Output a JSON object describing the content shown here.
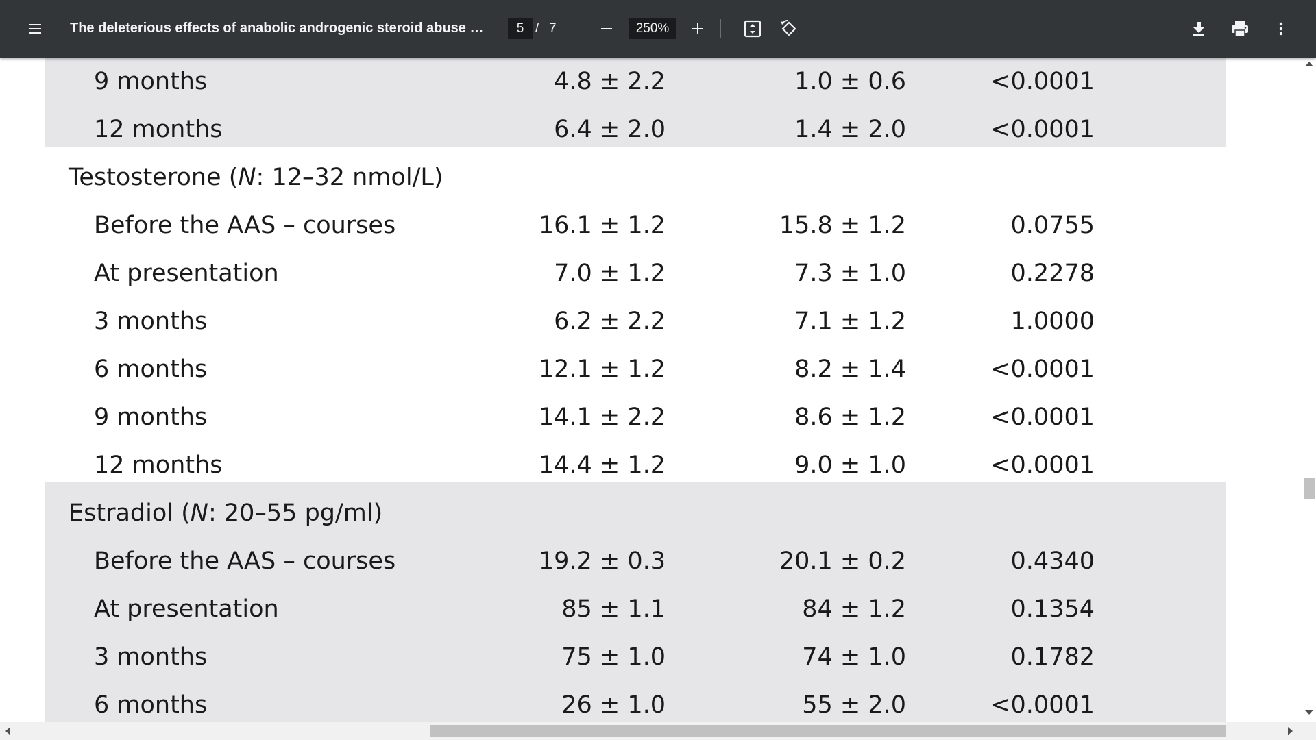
{
  "toolbar": {
    "title": "The deleterious effects of anabolic androgenic steroid abuse o...",
    "current_page": "5",
    "page_separator": "/",
    "total_pages": "7",
    "zoom": "250%",
    "icons": {
      "menu": "menu-icon",
      "zoom_out": "minus-icon",
      "zoom_in": "plus-icon",
      "fit": "fit-to-page-icon",
      "rotate": "rotate-icon",
      "download": "download-icon",
      "print": "print-icon",
      "more": "more-vertical-icon"
    },
    "colors": {
      "background": "#323639",
      "text": "#f1f3f4",
      "input_bg": "#191b1c"
    }
  },
  "table": {
    "band_color": "#e6e6e8",
    "rows": [
      {
        "type": "data",
        "label": "9 months",
        "v1": "4.8 ± 2.2",
        "v2": "1.0 ± 0.6",
        "p": "<0.0001"
      },
      {
        "type": "data",
        "label": "12 months",
        "v1": "6.4 ± 2.0",
        "v2": "1.4 ± 2.0",
        "p": "<0.0001"
      },
      {
        "type": "heading",
        "label_prefix": "Testosterone (",
        "label_italic": "N",
        "label_suffix": ": 12–32 nmol/L)"
      },
      {
        "type": "data",
        "label": "Before the AAS – courses",
        "v1": "16.1 ± 1.2",
        "v2": "15.8 ± 1.2",
        "p": "0.0755"
      },
      {
        "type": "data",
        "label": "At presentation",
        "v1": "7.0 ± 1.2",
        "v2": "7.3 ± 1.0",
        "p": "0.2278"
      },
      {
        "type": "data",
        "label": "3 months",
        "v1": "6.2 ± 2.2",
        "v2": "7.1 ± 1.2",
        "p": "1.0000"
      },
      {
        "type": "data",
        "label": "6 months",
        "v1": "12.1 ± 1.2",
        "v2": "8.2 ± 1.4",
        "p": "<0.0001"
      },
      {
        "type": "data",
        "label": "9 months",
        "v1": "14.1 ± 2.2",
        "v2": "8.6 ± 1.2",
        "p": "<0.0001"
      },
      {
        "type": "data",
        "label": "12 months",
        "v1": "14.4 ± 1.2",
        "v2": "9.0 ± 1.0",
        "p": "<0.0001"
      },
      {
        "type": "heading",
        "label_prefix": "Estradiol (",
        "label_italic": "N",
        "label_suffix": ": 20–55 pg/ml)"
      },
      {
        "type": "data",
        "label": "Before the AAS – courses",
        "v1": "19.2 ± 0.3",
        "v2": "20.1 ± 0.2",
        "p": "0.4340"
      },
      {
        "type": "data",
        "label": "At presentation",
        "v1": "85 ± 1.1",
        "v2": "84 ± 1.2",
        "p": "0.1354"
      },
      {
        "type": "data",
        "label": "3 months",
        "v1": "75 ± 1.0",
        "v2": "74 ± 1.0",
        "p": "0.1782"
      },
      {
        "type": "data",
        "label": "6 months",
        "v1": "26 ± 1.0",
        "v2": "55 ± 2.0",
        "p": "<0.0001"
      }
    ]
  }
}
